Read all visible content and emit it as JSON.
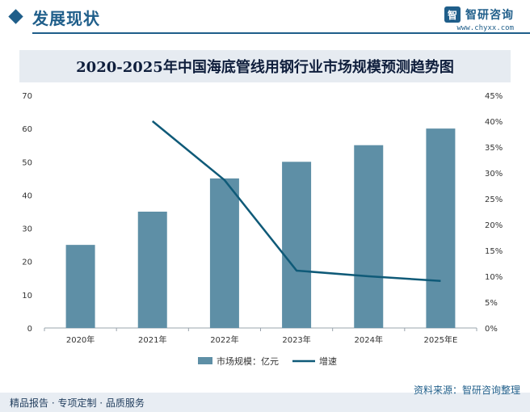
{
  "header": {
    "section_title": "发展现状",
    "brand_name": "智研咨询",
    "brand_url": "www.chyxx.com"
  },
  "chart_data": {
    "type": "bar",
    "title": "2020-2025年中国海底管线用钢行业市场规模预测趋势图",
    "categories": [
      "2020年",
      "2021年",
      "2022年",
      "2023年",
      "2024年",
      "2025年E"
    ],
    "series": [
      {
        "name": "市场规模：亿元",
        "type": "bar",
        "axis": "left",
        "color": "#5e8fa6",
        "values": [
          25,
          35,
          45,
          50,
          55,
          60
        ]
      },
      {
        "name": "增速",
        "type": "line",
        "axis": "right",
        "color": "#0f5a78",
        "values": [
          null,
          40,
          28.6,
          11.1,
          10,
          9.1
        ]
      }
    ],
    "y_left": {
      "min": 0,
      "max": 70,
      "ticks": [
        0,
        10,
        20,
        30,
        40,
        50,
        60,
        70
      ]
    },
    "y_right": {
      "min": 0,
      "max": 45,
      "ticks": [
        0,
        5,
        10,
        15,
        20,
        25,
        30,
        35,
        40,
        45
      ],
      "unit": "%"
    },
    "legend_position": "bottom-center",
    "grid": false
  },
  "footer": {
    "source": "资料来源：智研咨询整理",
    "tagline": "精品报告 · 专项定制 · 品质服务"
  }
}
